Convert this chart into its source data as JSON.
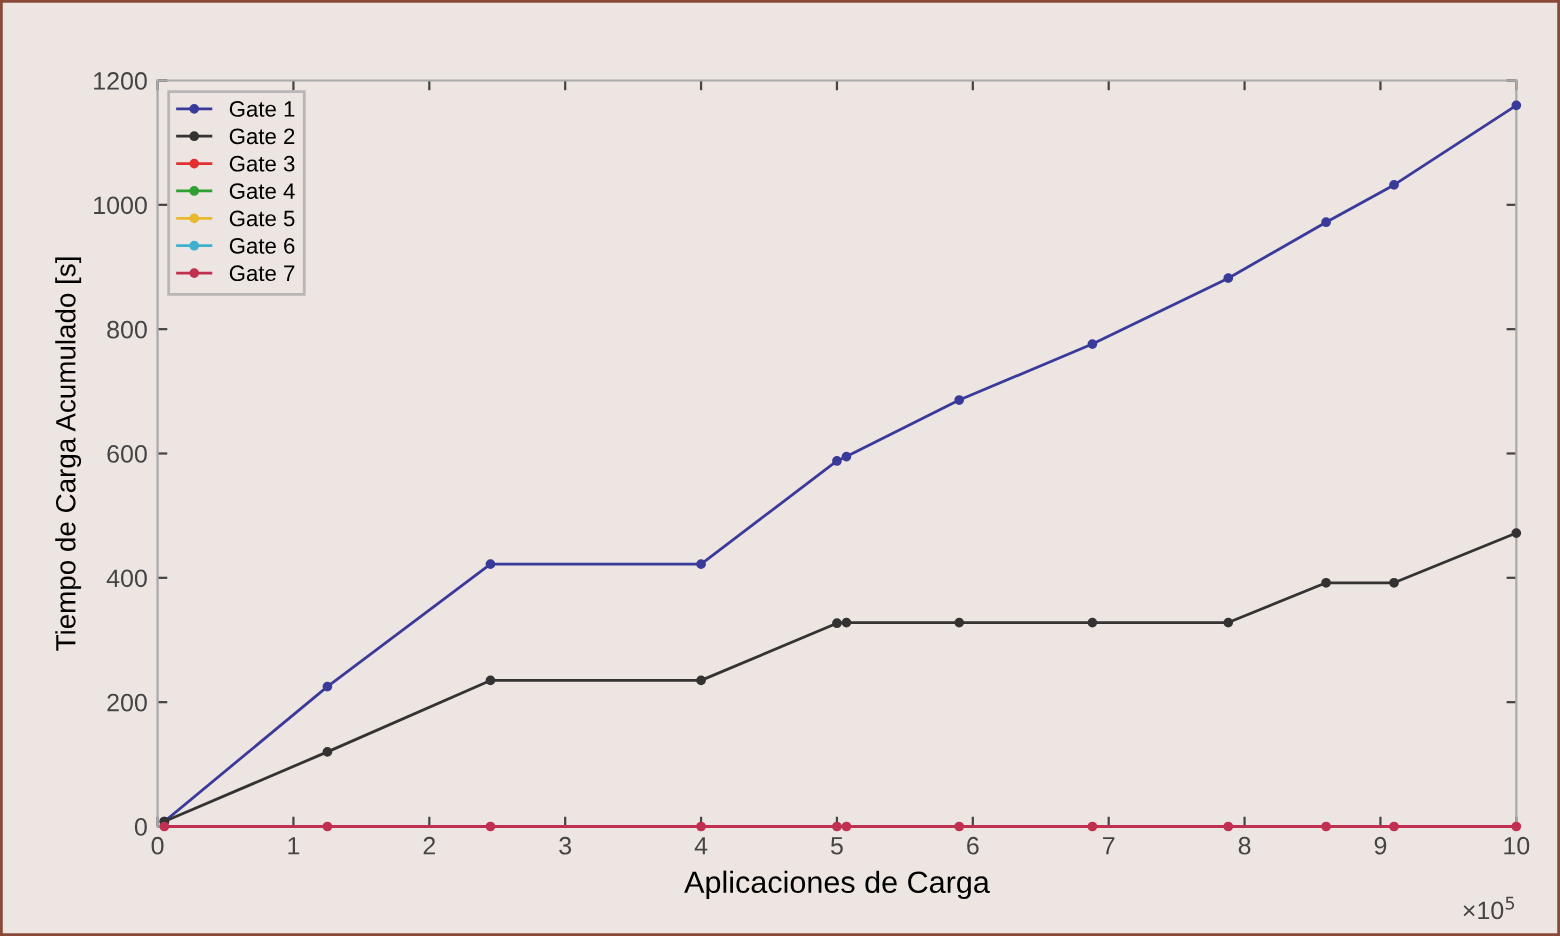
{
  "chart_data": {
    "type": "line",
    "xlabel": "Aplicaciones de Carga",
    "ylabel": "Tiempo de Carga Acumulado [s]",
    "x": [
      0.05,
      1.25,
      2.45,
      4.0,
      5.0,
      5.07,
      5.9,
      6.88,
      7.88,
      8.6,
      9.1,
      10
    ],
    "series": [
      {
        "name": "Gate 1",
        "color": "#3a3a9a",
        "values": [
          8,
          225,
          422,
          422,
          588,
          595,
          686,
          776,
          882,
          972,
          1032,
          1160
        ]
      },
      {
        "name": "Gate 2",
        "color": "#333333",
        "values": [
          8,
          120,
          235,
          235,
          327,
          328,
          328,
          328,
          328,
          392,
          392,
          472
        ]
      },
      {
        "name": "Gate 3",
        "color": "#e03030",
        "values": [
          null,
          null,
          null,
          null,
          null,
          null,
          null,
          null,
          null,
          null,
          null,
          null
        ]
      },
      {
        "name": "Gate 4",
        "color": "#30a030",
        "values": [
          null,
          null,
          null,
          null,
          null,
          null,
          null,
          null,
          null,
          null,
          null,
          null
        ]
      },
      {
        "name": "Gate 5",
        "color": "#e8b830",
        "values": [
          null,
          null,
          null,
          null,
          null,
          null,
          null,
          null,
          null,
          null,
          null,
          null
        ]
      },
      {
        "name": "Gate 6",
        "color": "#40b0d0",
        "values": [
          null,
          null,
          null,
          null,
          null,
          null,
          null,
          null,
          null,
          null,
          null,
          null
        ]
      },
      {
        "name": "Gate 7",
        "color": "#c03050",
        "values": [
          0,
          0,
          0,
          0,
          0,
          0,
          0,
          0,
          0,
          0,
          0,
          0
        ]
      }
    ],
    "xlim": [
      0,
      10
    ],
    "xticks": [
      0,
      1,
      2,
      3,
      4,
      5,
      6,
      7,
      8,
      9,
      10
    ],
    "ylim": [
      0,
      1200
    ],
    "yticks": [
      0,
      200,
      400,
      600,
      800,
      1000,
      1200
    ],
    "annotations": [
      "×10$^{5}$"
    ],
    "grid": false,
    "legend": "top left",
    "marker": "circle",
    "line_style": "solid"
  }
}
